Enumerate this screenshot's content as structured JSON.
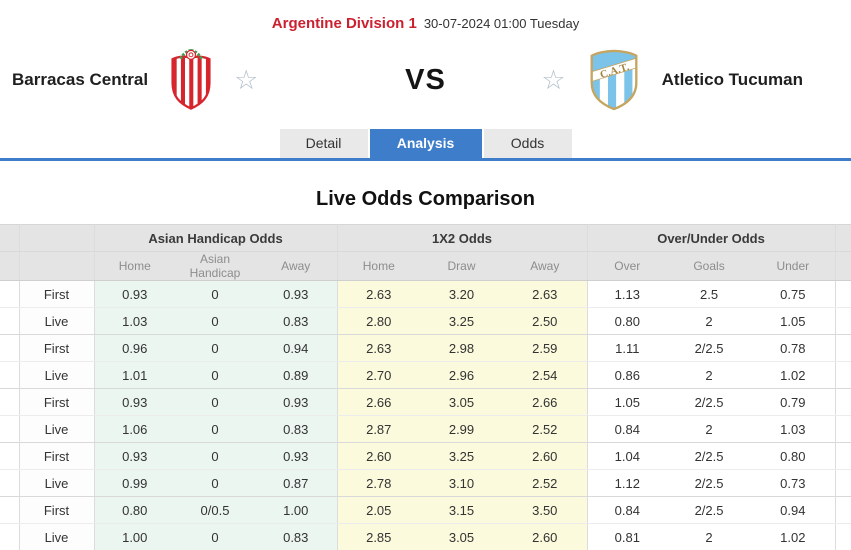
{
  "header": {
    "league": "Argentine Division 1",
    "kickoff": "30-07-2024 01:00 Tuesday"
  },
  "match": {
    "home_team": "Barracas Central",
    "away_team": "Atletico Tucuman",
    "vs_label": "VS",
    "away_crest_text": "C.A.T.",
    "star_glyph": "☆"
  },
  "tabs": [
    {
      "label": "Detail",
      "active": false
    },
    {
      "label": "Analysis",
      "active": true
    },
    {
      "label": "Odds",
      "active": false
    }
  ],
  "section_title": "Live Odds Comparison",
  "odds_table": {
    "groups": [
      {
        "label": "Asian Handicap Odds",
        "columns": [
          "Home",
          "Asian Handicap",
          "Away"
        ]
      },
      {
        "label": "1X2 Odds",
        "columns": [
          "Home",
          "Draw",
          "Away"
        ]
      },
      {
        "label": "Over/Under Odds",
        "columns": [
          "Over",
          "Goals",
          "Under"
        ]
      }
    ],
    "rows": [
      {
        "type": "First",
        "asian_handicap": [
          "0.93",
          "0",
          "0.93"
        ],
        "one_x_two": [
          "2.63",
          "3.20",
          "2.63"
        ],
        "over_under": [
          "1.13",
          "2.5",
          "0.75"
        ]
      },
      {
        "type": "Live",
        "asian_handicap": [
          "1.03",
          "0",
          "0.83"
        ],
        "one_x_two": [
          "2.80",
          "3.25",
          "2.50"
        ],
        "over_under": [
          "0.80",
          "2",
          "1.05"
        ]
      },
      {
        "type": "First",
        "asian_handicap": [
          "0.96",
          "0",
          "0.94"
        ],
        "one_x_two": [
          "2.63",
          "2.98",
          "2.59"
        ],
        "over_under": [
          "1.11",
          "2/2.5",
          "0.78"
        ]
      },
      {
        "type": "Live",
        "asian_handicap": [
          "1.01",
          "0",
          "0.89"
        ],
        "one_x_two": [
          "2.70",
          "2.96",
          "2.54"
        ],
        "over_under": [
          "0.86",
          "2",
          "1.02"
        ]
      },
      {
        "type": "First",
        "asian_handicap": [
          "0.93",
          "0",
          "0.93"
        ],
        "one_x_two": [
          "2.66",
          "3.05",
          "2.66"
        ],
        "over_under": [
          "1.05",
          "2/2.5",
          "0.79"
        ]
      },
      {
        "type": "Live",
        "asian_handicap": [
          "1.06",
          "0",
          "0.83"
        ],
        "one_x_two": [
          "2.87",
          "2.99",
          "2.52"
        ],
        "over_under": [
          "0.84",
          "2",
          "1.03"
        ]
      },
      {
        "type": "First",
        "asian_handicap": [
          "0.93",
          "0",
          "0.93"
        ],
        "one_x_two": [
          "2.60",
          "3.25",
          "2.60"
        ],
        "over_under": [
          "1.04",
          "2/2.5",
          "0.80"
        ]
      },
      {
        "type": "Live",
        "asian_handicap": [
          "0.99",
          "0",
          "0.87"
        ],
        "one_x_two": [
          "2.78",
          "3.10",
          "2.52"
        ],
        "over_under": [
          "1.12",
          "2/2.5",
          "0.73"
        ]
      },
      {
        "type": "First",
        "asian_handicap": [
          "0.80",
          "0/0.5",
          "1.00"
        ],
        "one_x_two": [
          "2.05",
          "3.15",
          "3.50"
        ],
        "over_under": [
          "0.84",
          "2/2.5",
          "0.94"
        ]
      },
      {
        "type": "Live",
        "asian_handicap": [
          "1.00",
          "0",
          "0.83"
        ],
        "one_x_two": [
          "2.85",
          "3.05",
          "2.60"
        ],
        "over_under": [
          "0.81",
          "2",
          "1.02"
        ]
      }
    ]
  },
  "colors": {
    "league_red": "#cb2030",
    "tab_active_blue": "#3d7dca",
    "asian_handicap_bg": "#ecf6f0",
    "one_x_two_bg": "#fbfadc",
    "table_header_bg": "#e4e4e4"
  }
}
